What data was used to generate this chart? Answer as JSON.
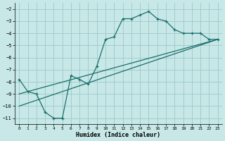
{
  "xlabel": "Humidex (Indice chaleur)",
  "background_color": "#c8e8e8",
  "grid_color": "#a0cccc",
  "line_color": "#1a6e6a",
  "xlim": [
    -0.5,
    23.5
  ],
  "ylim": [
    -11.5,
    -1.5
  ],
  "xticks": [
    0,
    1,
    2,
    3,
    4,
    5,
    6,
    7,
    8,
    9,
    10,
    11,
    12,
    13,
    14,
    15,
    16,
    17,
    18,
    19,
    20,
    21,
    22,
    23
  ],
  "yticks": [
    -2,
    -3,
    -4,
    -5,
    -6,
    -7,
    -8,
    -9,
    -10,
    -11
  ],
  "line1_x": [
    0,
    1,
    2,
    3,
    4,
    5,
    6,
    7,
    8,
    9,
    10,
    11,
    12,
    13,
    14,
    15,
    16,
    17,
    18,
    19,
    20,
    21,
    22,
    23
  ],
  "line1_y": [
    -7.8,
    -8.8,
    -9.0,
    -10.5,
    -11.0,
    -11.0,
    -7.5,
    -7.8,
    -8.2,
    -6.7,
    -4.5,
    -4.3,
    -2.8,
    -2.8,
    -2.5,
    -2.2,
    -2.8,
    -3.0,
    -3.7,
    -4.0,
    -4.0,
    -4.0,
    -4.5,
    -4.5
  ],
  "line2_x": [
    0,
    23
  ],
  "line2_y": [
    -9.0,
    -4.5
  ],
  "line3_x": [
    0,
    23
  ],
  "line3_y": [
    -10.0,
    -4.5
  ]
}
